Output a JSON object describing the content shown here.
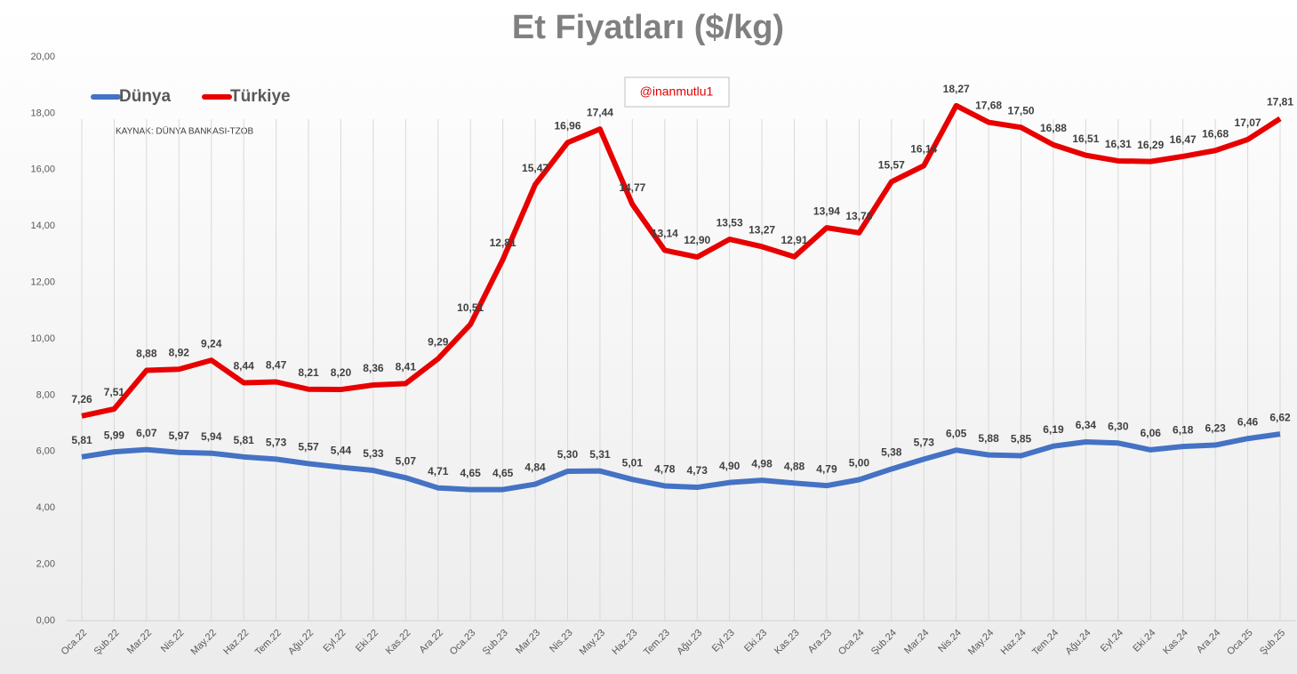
{
  "chart_data": {
    "type": "line",
    "title": "Et Fiyatları ($/kg)",
    "annotations": [
      "@inanmutlu1",
      "KAYNAK: DÜNYA BANKASI-TZOB"
    ],
    "categories": [
      "Oca.22",
      "Şub.22",
      "Mar.22",
      "Nis.22",
      "May.22",
      "Haz.22",
      "Tem.22",
      "Ağu.22",
      "Eyl.22",
      "Eki.22",
      "Kas.22",
      "Ara.22",
      "Oca.23",
      "Şub.23",
      "Mar.23",
      "Nis.23",
      "May.23",
      "Haz.23",
      "Tem.23",
      "Ağu.23",
      "Eyl.23",
      "Eki.23",
      "Kas.23",
      "Ara.23",
      "Oca.24",
      "Şub.24",
      "Mar.24",
      "Nis.24",
      "May.24",
      "Haz.24",
      "Tem.24",
      "Ağu.24",
      "Eyl.24",
      "Eki.24",
      "Kas.24",
      "Ara.24",
      "Oca.25",
      "Şub.25"
    ],
    "series": [
      {
        "name": "Dünya",
        "color": "#4472c4",
        "values": [
          5.81,
          5.99,
          6.07,
          5.97,
          5.94,
          5.81,
          5.73,
          5.57,
          5.44,
          5.33,
          5.07,
          4.71,
          4.65,
          4.65,
          4.84,
          5.3,
          5.31,
          5.01,
          4.78,
          4.73,
          4.9,
          4.98,
          4.88,
          4.79,
          5.0,
          5.38,
          5.73,
          6.05,
          5.88,
          5.85,
          6.19,
          6.34,
          6.3,
          6.06,
          6.18,
          6.23,
          6.46,
          6.62
        ],
        "value_labels": [
          "5,81",
          "5,99",
          "6,07",
          "5,97",
          "5,94",
          "5,81",
          "5,73",
          "5,57",
          "5,44",
          "5,33",
          "5,07",
          "4,71",
          "4,65",
          "4,65",
          "4,84",
          "5,30",
          "5,31",
          "5,01",
          "4,78",
          "4,73",
          "4,90",
          "4,98",
          "4,88",
          "4,79",
          "5,00",
          "5,38",
          "5,73",
          "6,05",
          "5,88",
          "5,85",
          "6,19",
          "6,34",
          "6,30",
          "6,06",
          "6,18",
          "6,23",
          "6,46",
          "6,62"
        ]
      },
      {
        "name": "Türkiye",
        "color": "#e80000",
        "values": [
          7.26,
          7.51,
          8.88,
          8.92,
          9.24,
          8.44,
          8.47,
          8.21,
          8.2,
          8.36,
          8.41,
          9.29,
          10.51,
          12.81,
          15.47,
          16.96,
          17.44,
          14.77,
          13.14,
          12.9,
          13.53,
          13.27,
          12.91,
          13.94,
          13.76,
          15.57,
          16.14,
          18.27,
          17.68,
          17.5,
          16.88,
          16.51,
          16.31,
          16.29,
          16.47,
          16.68,
          17.07,
          17.81
        ],
        "value_labels": [
          "7,26",
          "7,51",
          "8,88",
          "8,92",
          "9,24",
          "8,44",
          "8,47",
          "8,21",
          "8,20",
          "8,36",
          "8,41",
          "9,29",
          "10,51",
          "12,81",
          "15,47",
          "16,96",
          "17,44",
          "14,77",
          "13,14",
          "12,90",
          "13,53",
          "13,27",
          "12,91",
          "13,94",
          "13,76",
          "15,57",
          "16,14",
          "18,27",
          "17,68",
          "17,50",
          "16,88",
          "16,51",
          "16,31",
          "16,29",
          "16,47",
          "16,68",
          "17,07",
          "17,81"
        ]
      }
    ],
    "ylim": [
      0,
      20
    ],
    "yticks": [
      {
        "value": 0,
        "label": "0,00"
      },
      {
        "value": 2,
        "label": "2,00"
      },
      {
        "value": 4,
        "label": "4,00"
      },
      {
        "value": 6,
        "label": "6,00"
      },
      {
        "value": 8,
        "label": "8,00"
      },
      {
        "value": 10,
        "label": "10,00"
      },
      {
        "value": 12,
        "label": "12,00"
      },
      {
        "value": 14,
        "label": "14,00"
      },
      {
        "value": 16,
        "label": "16,00"
      },
      {
        "value": 18,
        "label": "18,00"
      },
      {
        "value": 20,
        "label": "20,00"
      }
    ],
    "grid": "x",
    "legend": "top-left"
  }
}
